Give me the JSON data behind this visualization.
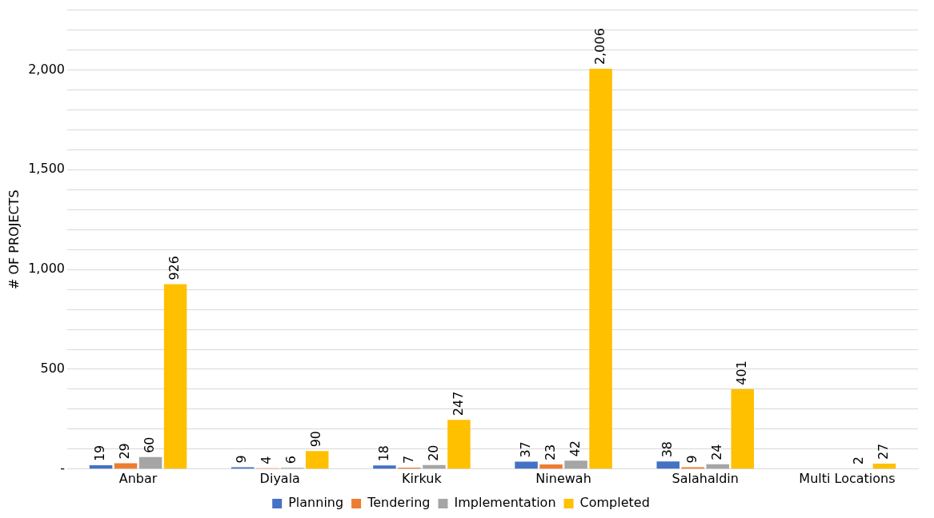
{
  "chart_data": {
    "type": "bar",
    "ylabel": "# OF PROJECTS",
    "categories": [
      "Anbar",
      "Diyala",
      "Kirkuk",
      "Ninewah",
      "Salahaldin",
      "Multi Locations"
    ],
    "series": [
      {
        "name": "Planning",
        "color": "#4472c4",
        "values": [
          19,
          9,
          18,
          37,
          38,
          null
        ],
        "value_labels": [
          "19",
          "9",
          "18",
          "37",
          "38",
          null
        ]
      },
      {
        "name": "Tendering",
        "color": "#ed7d31",
        "values": [
          29,
          4,
          7,
          23,
          9,
          null
        ],
        "value_labels": [
          "29",
          "4",
          "7",
          "23",
          "9",
          null
        ]
      },
      {
        "name": "Implementation",
        "color": "#a5a5a5",
        "values": [
          60,
          6,
          20,
          42,
          24,
          2
        ],
        "value_labels": [
          "60",
          "6",
          "20",
          "42",
          "24",
          "2"
        ]
      },
      {
        "name": "Completed",
        "color": "#ffc000",
        "values": [
          926,
          90,
          247,
          2006,
          401,
          27
        ],
        "value_labels": [
          "926",
          "90",
          "247",
          "2,006",
          "401",
          "27"
        ]
      }
    ],
    "ylim": [
      0,
      2300
    ],
    "yticks": [
      {
        "value": 0,
        "label": "-"
      },
      {
        "value": 100,
        "label": null
      },
      {
        "value": 200,
        "label": null
      },
      {
        "value": 300,
        "label": null
      },
      {
        "value": 400,
        "label": null
      },
      {
        "value": 500,
        "label": "500"
      },
      {
        "value": 600,
        "label": null
      },
      {
        "value": 700,
        "label": null
      },
      {
        "value": 800,
        "label": null
      },
      {
        "value": 900,
        "label": null
      },
      {
        "value": 1000,
        "label": "1,000"
      },
      {
        "value": 1100,
        "label": null
      },
      {
        "value": 1200,
        "label": null
      },
      {
        "value": 1300,
        "label": null
      },
      {
        "value": 1400,
        "label": null
      },
      {
        "value": 1500,
        "label": "1,500"
      },
      {
        "value": 1600,
        "label": null
      },
      {
        "value": 1700,
        "label": null
      },
      {
        "value": 1800,
        "label": null
      },
      {
        "value": 1900,
        "label": null
      },
      {
        "value": 2000,
        "label": "2,000"
      },
      {
        "value": 2100,
        "label": null
      },
      {
        "value": 2200,
        "label": null
      },
      {
        "value": 2300,
        "label": null
      }
    ],
    "grid": "y",
    "legend": "bottom"
  }
}
